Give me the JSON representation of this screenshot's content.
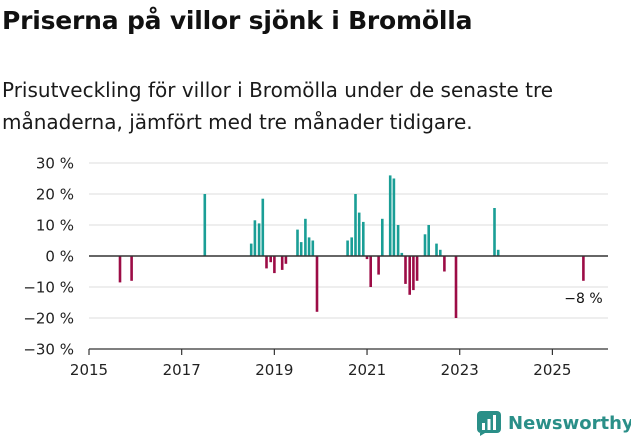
{
  "header": {
    "title": "Priserna på villor sjönk i Bromölla",
    "subtitle": "Prisutveckling för villor i Bromölla under de senaste tre månaderna, jämfört med tre månader tidigare."
  },
  "brand": {
    "name": "Newsworthy"
  },
  "colors": {
    "positive": "#1a9e96",
    "negative": "#9c0c46",
    "grid": "#dddddd",
    "axis": "#333333",
    "brand": "#2a8f88"
  },
  "chart_data": {
    "type": "bar",
    "title": "Priserna på villor sjönk i Bromölla",
    "subtitle": "Prisutveckling för villor i Bromölla under de senaste tre månaderna, jämfört med tre månader tidigare.",
    "xlabel": "",
    "ylabel": "",
    "x_unit": "decimal year",
    "xlim": [
      2015,
      2026.2
    ],
    "ylim": [
      -30,
      30
    ],
    "y_ticks": [
      30,
      20,
      10,
      0,
      -10,
      -20,
      -30
    ],
    "y_tick_labels": [
      "30 %",
      "20 %",
      "10 %",
      "0 %",
      "−10 %",
      "−20 %",
      "−30 %"
    ],
    "x_ticks": [
      2015,
      2017,
      2019,
      2021,
      2023,
      2025
    ],
    "x_tick_labels": [
      "2015",
      "2017",
      "2019",
      "2021",
      "2023",
      "2025"
    ],
    "grid": true,
    "annotation": {
      "label": "−8 %",
      "x": 2025.67,
      "value": -8
    },
    "series": [
      {
        "name": "Prisutveckling",
        "points": [
          {
            "x": 2015.67,
            "y": -8.5
          },
          {
            "x": 2015.92,
            "y": -8
          },
          {
            "x": 2017.5,
            "y": 20
          },
          {
            "x": 2018.5,
            "y": 4
          },
          {
            "x": 2018.58,
            "y": 11.5
          },
          {
            "x": 2018.67,
            "y": 10.5
          },
          {
            "x": 2018.75,
            "y": 18.5
          },
          {
            "x": 2018.83,
            "y": -4
          },
          {
            "x": 2018.92,
            "y": -2
          },
          {
            "x": 2019.0,
            "y": -5.5
          },
          {
            "x": 2019.17,
            "y": -4.5
          },
          {
            "x": 2019.25,
            "y": -2.5
          },
          {
            "x": 2019.5,
            "y": 8.5
          },
          {
            "x": 2019.58,
            "y": 4.5
          },
          {
            "x": 2019.67,
            "y": 12
          },
          {
            "x": 2019.75,
            "y": 6
          },
          {
            "x": 2019.83,
            "y": 5
          },
          {
            "x": 2019.92,
            "y": -18
          },
          {
            "x": 2020.58,
            "y": 5
          },
          {
            "x": 2020.67,
            "y": 6
          },
          {
            "x": 2020.75,
            "y": 20
          },
          {
            "x": 2020.83,
            "y": 14
          },
          {
            "x": 2020.92,
            "y": 11
          },
          {
            "x": 2021.0,
            "y": -1
          },
          {
            "x": 2021.08,
            "y": -10
          },
          {
            "x": 2021.25,
            "y": -6
          },
          {
            "x": 2021.33,
            "y": 12
          },
          {
            "x": 2021.5,
            "y": 26
          },
          {
            "x": 2021.58,
            "y": 25
          },
          {
            "x": 2021.67,
            "y": 10
          },
          {
            "x": 2021.75,
            "y": 1
          },
          {
            "x": 2021.83,
            "y": -9
          },
          {
            "x": 2021.92,
            "y": -12.5
          },
          {
            "x": 2022.0,
            "y": -11
          },
          {
            "x": 2022.08,
            "y": -8
          },
          {
            "x": 2022.25,
            "y": 7
          },
          {
            "x": 2022.33,
            "y": 10
          },
          {
            "x": 2022.5,
            "y": 4
          },
          {
            "x": 2022.58,
            "y": 2
          },
          {
            "x": 2022.67,
            "y": -5
          },
          {
            "x": 2022.92,
            "y": -20
          },
          {
            "x": 2023.75,
            "y": 15.5
          },
          {
            "x": 2023.83,
            "y": 2
          },
          {
            "x": 2025.67,
            "y": -8
          }
        ]
      }
    ]
  }
}
